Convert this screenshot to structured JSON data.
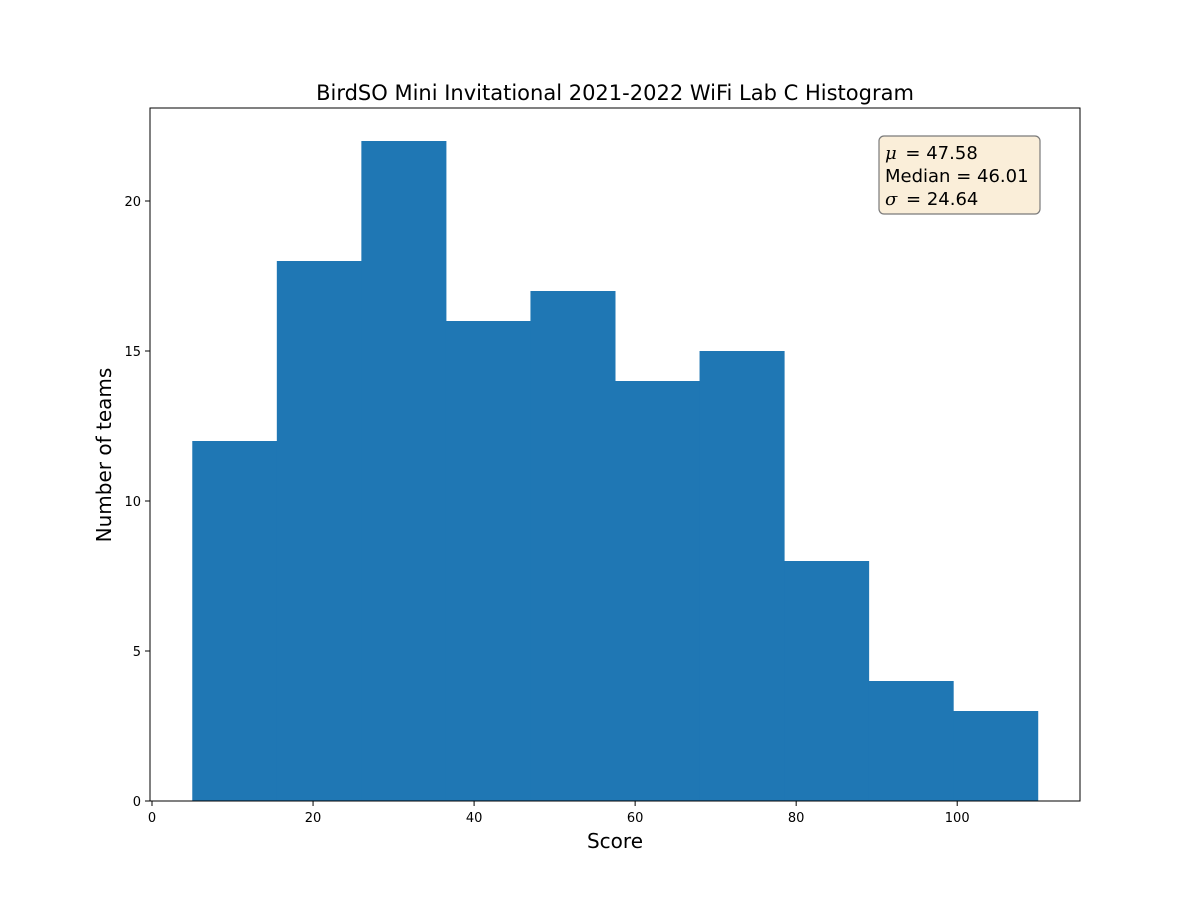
{
  "chart_data": {
    "type": "bar",
    "title": "BirdSO Mini Invitational 2021-2022 WiFi Lab C Histogram",
    "xlabel": "Score",
    "ylabel": "Number of teams",
    "bins": [
      {
        "x0": 5.0,
        "x1": 15.5,
        "count": 12
      },
      {
        "x0": 15.5,
        "x1": 26.0,
        "count": 18
      },
      {
        "x0": 26.0,
        "x1": 36.5,
        "count": 22
      },
      {
        "x0": 36.5,
        "x1": 47.0,
        "count": 16
      },
      {
        "x0": 47.0,
        "x1": 57.5,
        "count": 17
      },
      {
        "x0": 57.5,
        "x1": 68.0,
        "count": 14
      },
      {
        "x0": 68.0,
        "x1": 78.5,
        "count": 15
      },
      {
        "x0": 78.5,
        "x1": 89.0,
        "count": 8
      },
      {
        "x0": 89.0,
        "x1": 99.5,
        "count": 4
      },
      {
        "x0": 99.5,
        "x1": 110.0,
        "count": 3
      }
    ],
    "xlim": [
      -0.25,
      115.25
    ],
    "ylim": [
      0,
      23.1
    ],
    "xticks": [
      0,
      20,
      40,
      60,
      80,
      100
    ],
    "yticks": [
      0,
      5,
      10,
      15,
      20
    ],
    "bar_color": "#1f77b4",
    "grid": false,
    "legend": "none",
    "stats": {
      "mean_symbol": "μ",
      "mean_value": "47.58",
      "median_label": "Median",
      "median_value": "46.01",
      "std_symbol": "σ",
      "std_value": "24.64",
      "box_fill": "#f5deb3",
      "box_position": "top-right"
    }
  }
}
